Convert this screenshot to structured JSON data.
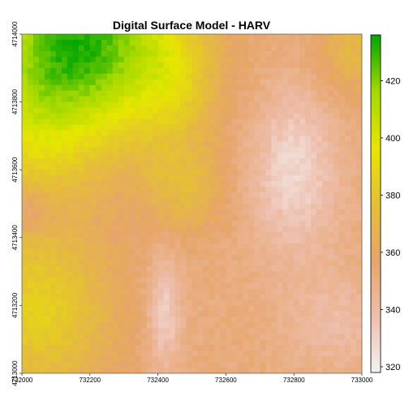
{
  "chart_data": {
    "type": "heatmap",
    "title": "Digital Surface Model - HARV",
    "xlabel": "",
    "ylabel": "",
    "x_range": [
      732000,
      733000
    ],
    "y_range": [
      4713000,
      4714000
    ],
    "x_ticks": [
      {
        "value": 732000,
        "label": "732000"
      },
      {
        "value": 732200,
        "label": "732200"
      },
      {
        "value": 732400,
        "label": "732400"
      },
      {
        "value": 732600,
        "label": "732600"
      },
      {
        "value": 732800,
        "label": "732800"
      },
      {
        "value": 733000,
        "label": "733000"
      }
    ],
    "y_ticks": [
      {
        "value": 4713000,
        "label": "4713000"
      },
      {
        "value": 4713200,
        "label": "4713200"
      },
      {
        "value": 4713400,
        "label": "4713400"
      },
      {
        "value": 4713600,
        "label": "4713600"
      },
      {
        "value": 4713800,
        "label": "4713800"
      },
      {
        "value": 4714000,
        "label": "4714000"
      }
    ],
    "legend": {
      "placement": "right",
      "range": [
        318,
        436
      ],
      "ticks": [
        {
          "value": 320,
          "label": "320"
        },
        {
          "value": 340,
          "label": "340"
        },
        {
          "value": 360,
          "label": "360"
        },
        {
          "value": 380,
          "label": "380"
        },
        {
          "value": 400,
          "label": "400"
        },
        {
          "value": 420,
          "label": "420"
        }
      ]
    },
    "colors": {
      "ramp": [
        "#f2f2f2",
        "#eebeac",
        "#e6a56a",
        "#e5c133",
        "#e6e600",
        "#a3d900",
        "#00a600"
      ],
      "background": "#ffffff"
    },
    "grid": false
  }
}
